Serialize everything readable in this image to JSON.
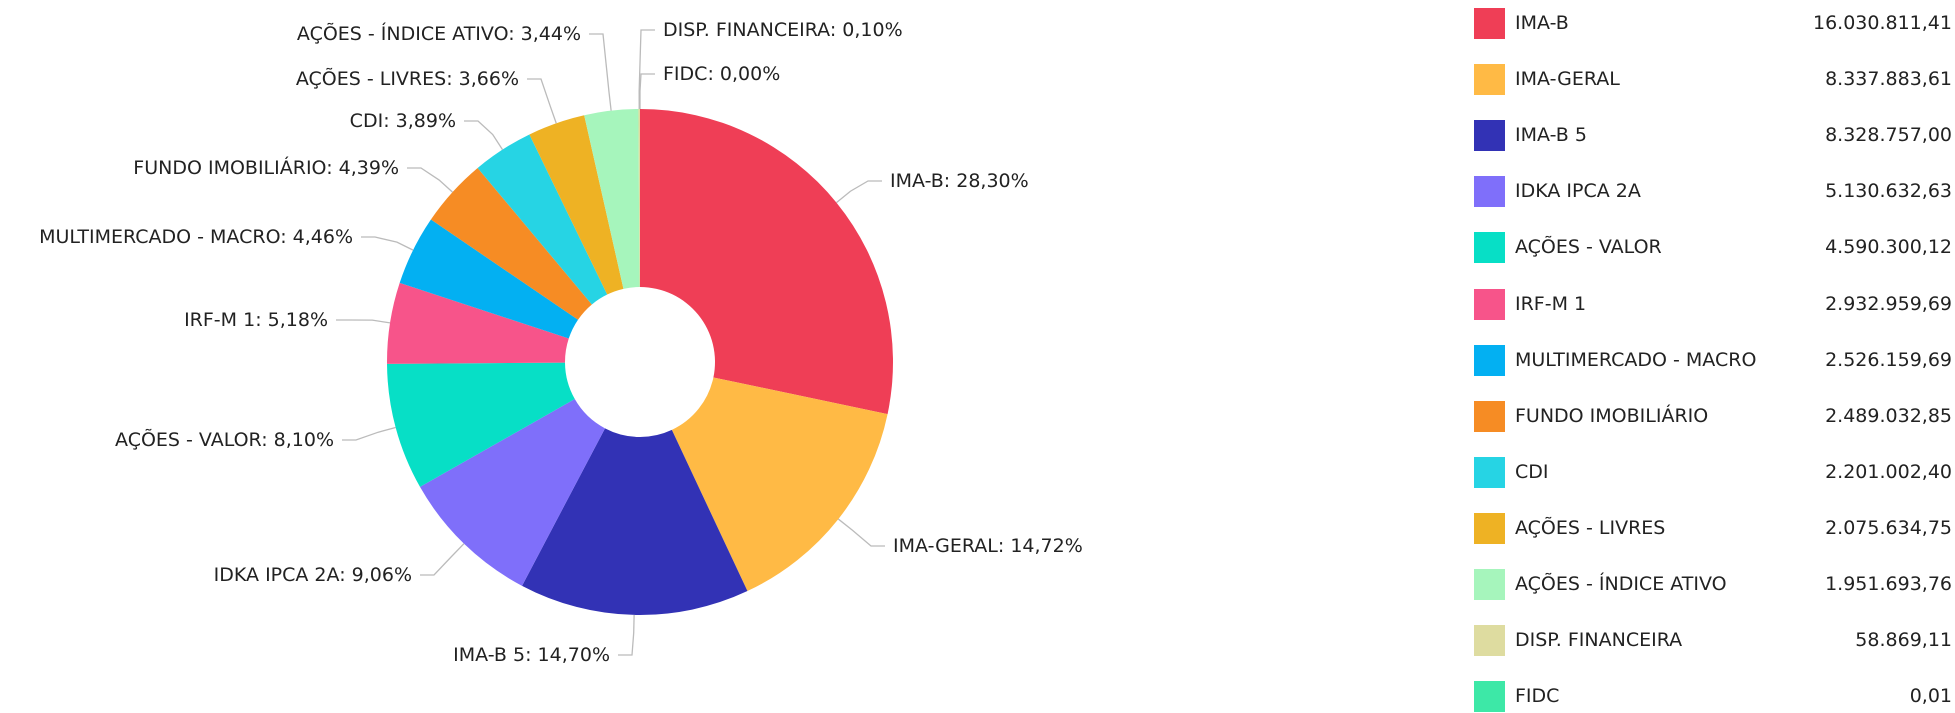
{
  "chart_data": {
    "type": "pie",
    "categories": [
      "IMA-B",
      "IMA-GERAL",
      "IMA-B 5",
      "IDKA IPCA 2A",
      "AÇÕES - VALOR",
      "IRF-M 1",
      "MULTIMERCADO - MACRO",
      "FUNDO IMOBILIÁRIO",
      "CDI",
      "AÇÕES - LIVRES",
      "AÇÕES - ÍNDICE ATIVO",
      "DISP. FINANCEIRA",
      "FIDC"
    ],
    "values": [
      28.3,
      14.72,
      14.7,
      9.06,
      8.1,
      5.18,
      4.46,
      4.39,
      3.89,
      3.66,
      3.44,
      0.1,
      0.0
    ],
    "value_labels": [
      "28,30%",
      "14,72%",
      "14,70%",
      "9,06%",
      "8,10%",
      "5,18%",
      "4,46%",
      "4,39%",
      "3,89%",
      "3,66%",
      "3,44%",
      "0,10%",
      "0,00%"
    ],
    "amounts": [
      16030811.41,
      8337883.61,
      8328757.0,
      5130632.63,
      4590300.12,
      2932959.69,
      2526159.69,
      2489032.85,
      2201002.4,
      2075634.75,
      1951693.76,
      58869.11,
      0.01
    ],
    "amount_labels": [
      "16.030.811,41",
      "8.337.883,61",
      "8.328.757,00",
      "5.130.632,63",
      "4.590.300,12",
      "2.932.959,69",
      "2.526.159,69",
      "2.489.032,85",
      "2.201.002,40",
      "2.075.634,75",
      "1.951.693,76",
      "58.869,11",
      "0,01"
    ],
    "colors": [
      "#ef3e56",
      "#ffba45",
      "#3232b5",
      "#7f6ffa",
      "#07dfc6",
      "#f7548a",
      "#03b0f2",
      "#f68c24",
      "#26d4e4",
      "#eeb224",
      "#a6f5bc",
      "#dedca0",
      "#3de8a7"
    ],
    "donut": true
  }
}
